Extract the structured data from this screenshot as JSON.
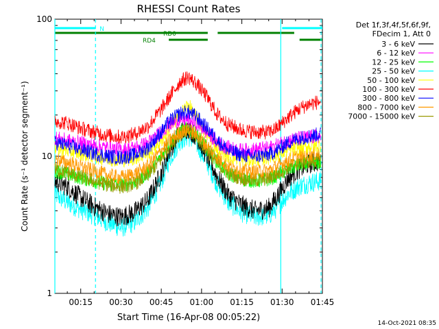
{
  "chart_data": {
    "type": "line",
    "title": "RHESSI Count Rates",
    "xlabel": "Start Time (16-Apr-08 00:05:22)",
    "ylabel": "Count Rate (s⁻¹ detector segment⁻¹)",
    "yscale": "log",
    "xlim_minutes_after_midnight": [
      5.37,
      105
    ],
    "ylim": [
      1,
      100
    ],
    "x_tick_labels": [
      "00:15",
      "00:30",
      "00:45",
      "01:00",
      "01:15",
      "01:30",
      "01:45"
    ],
    "x_tick_values_minutes": [
      15,
      30,
      45,
      60,
      75,
      90,
      105
    ],
    "y_tick_labels": [
      "1",
      "10",
      "100"
    ],
    "y_tick_values": [
      1,
      10,
      100
    ],
    "legend_header": [
      "Det 1f,3f,4f,5f,6f,9f,",
      "FDecim 1, Att 0"
    ],
    "legend_position": "right",
    "series": [
      {
        "name": "3 - 6 keV",
        "color": "#000000",
        "x_minutes": [
          6,
          10,
          15,
          20,
          25,
          30,
          35,
          40,
          45,
          48,
          52,
          55,
          58,
          62,
          66,
          70,
          75,
          80,
          85,
          88,
          92,
          96,
          100,
          104
        ],
        "values": [
          6.5,
          6.0,
          5.0,
          4.3,
          3.8,
          3.6,
          3.9,
          4.8,
          7.5,
          11,
          15,
          16,
          14,
          10,
          7,
          5.2,
          4.4,
          4.0,
          4.2,
          5.0,
          6.8,
          8.0,
          8.8,
          9.2
        ]
      },
      {
        "name": "6 - 12 keV",
        "color": "#ff00ff",
        "x_minutes": [
          6,
          10,
          15,
          20,
          25,
          30,
          35,
          40,
          45,
          48,
          52,
          55,
          58,
          62,
          66,
          70,
          75,
          80,
          85,
          88,
          92,
          96,
          100,
          104
        ],
        "values": [
          13.5,
          13,
          12.5,
          12,
          11.5,
          11.2,
          11.5,
          12.5,
          15,
          17,
          18.5,
          18.5,
          17.5,
          15,
          12.5,
          11.5,
          11,
          11.2,
          11.5,
          12,
          13,
          13.5,
          13.8,
          14
        ]
      },
      {
        "name": "12 - 25 keV",
        "color": "#00ff00",
        "x_minutes": [
          6,
          10,
          15,
          20,
          25,
          30,
          35,
          40,
          45,
          48,
          52,
          55,
          58,
          62,
          66,
          70,
          75,
          80,
          85,
          88,
          92,
          96,
          100,
          104
        ],
        "values": [
          7.8,
          7.4,
          7.0,
          6.6,
          6.3,
          6.2,
          6.5,
          7.5,
          10,
          12.5,
          15,
          16,
          14.5,
          11.5,
          9,
          7.5,
          6.8,
          6.6,
          6.8,
          7.2,
          8.0,
          8.6,
          8.9,
          9.0
        ]
      },
      {
        "name": "25 - 50 keV",
        "color": "#00ffff",
        "x_minutes": [
          6,
          10,
          15,
          20,
          25,
          30,
          35,
          40,
          45,
          48,
          52,
          55,
          58,
          62,
          66,
          70,
          75,
          80,
          85,
          88,
          92,
          96,
          100,
          104
        ],
        "values": [
          5.2,
          4.6,
          4.1,
          3.7,
          3.3,
          3.0,
          3.3,
          4.2,
          6.5,
          9.5,
          13,
          14,
          12.5,
          9,
          6.2,
          4.6,
          3.9,
          3.6,
          3.7,
          4.2,
          5.3,
          6.0,
          6.4,
          6.6
        ]
      },
      {
        "name": "50 - 100 keV",
        "color": "#ffff00",
        "x_minutes": [
          6,
          10,
          15,
          20,
          25,
          30,
          35,
          40,
          45,
          48,
          52,
          55,
          58,
          62,
          66,
          70,
          75,
          80,
          85,
          88,
          92,
          96,
          100,
          104
        ],
        "values": [
          11.5,
          11,
          10.5,
          10,
          9.6,
          9.4,
          9.7,
          10.5,
          13,
          16,
          20,
          24,
          19,
          14.5,
          11.5,
          10,
          9.5,
          9.5,
          9.8,
          10.3,
          11,
          11.5,
          11.8,
          12
        ]
      },
      {
        "name": "100 - 300 keV",
        "color": "#ff0000",
        "x_minutes": [
          6,
          10,
          15,
          20,
          25,
          30,
          35,
          40,
          45,
          48,
          52,
          55,
          58,
          62,
          66,
          70,
          75,
          80,
          85,
          88,
          92,
          96,
          100,
          104
        ],
        "values": [
          18,
          17.5,
          16,
          15,
          14.2,
          13.8,
          14.5,
          16.5,
          22,
          27,
          35,
          38,
          34,
          27,
          20,
          17,
          15.5,
          15,
          15,
          16,
          19,
          22,
          24,
          25
        ]
      },
      {
        "name": "300 - 800 keV",
        "color": "#0000ff",
        "x_minutes": [
          6,
          10,
          15,
          20,
          25,
          30,
          35,
          40,
          45,
          48,
          52,
          55,
          58,
          62,
          66,
          70,
          75,
          80,
          85,
          88,
          92,
          96,
          100,
          104
        ],
        "values": [
          12.5,
          12,
          11.2,
          10.5,
          10,
          9.8,
          10.2,
          11.5,
          15,
          18,
          20.5,
          21,
          19.5,
          16,
          13,
          11,
          10.2,
          10,
          10.3,
          11,
          12.5,
          13.5,
          14,
          14.5
        ]
      },
      {
        "name": "800 - 7000 keV",
        "color": "#ff9900",
        "x_minutes": [
          6,
          10,
          15,
          20,
          25,
          30,
          35,
          40,
          45,
          48,
          52,
          55,
          58,
          62,
          66,
          70,
          75,
          80,
          85,
          88,
          92,
          96,
          100,
          104
        ],
        "values": [
          9.5,
          9.0,
          8.4,
          7.8,
          7.3,
          7.0,
          7.4,
          8.5,
          11,
          13,
          15,
          15.5,
          14.5,
          12,
          9.8,
          8.5,
          7.9,
          7.7,
          7.9,
          8.4,
          9.3,
          10,
          10.3,
          10.5
        ]
      },
      {
        "name": "7000 - 15000 keV",
        "color": "#999900",
        "x_minutes": [
          6,
          10,
          15,
          20,
          25,
          30,
          35,
          40,
          45,
          48,
          52,
          55,
          58,
          62,
          66,
          70,
          75,
          80,
          85,
          88,
          92,
          96,
          100,
          104
        ],
        "values": [
          8.0,
          7.6,
          7.1,
          6.6,
          6.2,
          6.0,
          6.3,
          7.3,
          9.5,
          12,
          14.5,
          15.5,
          14,
          11,
          8.8,
          7.5,
          6.9,
          6.7,
          6.9,
          7.4,
          8.3,
          8.9,
          9.2,
          9.4
        ]
      }
    ],
    "annotations": {
      "flags": [
        {
          "label": "N",
          "color": "#00ffff",
          "segments": [
            [
              5.37,
              20.5
            ],
            [
              90.0,
              105
            ]
          ]
        },
        {
          "label": "RD0",
          "color": "#008000",
          "segments": [
            [
              5.37,
              62.3
            ],
            [
              66.0,
              94.5
            ]
          ]
        },
        {
          "label": "RD4",
          "color": "#008000",
          "segments": [
            [
              47.8,
              62.3
            ],
            [
              96.5,
              105
            ]
          ]
        }
      ],
      "vlines_solid_minutes": [
        5.37,
        89.5
      ],
      "vlines_dashed_minutes": [
        20.5,
        104.5
      ],
      "timestamp": "14-Oct-2021 08:35"
    }
  }
}
